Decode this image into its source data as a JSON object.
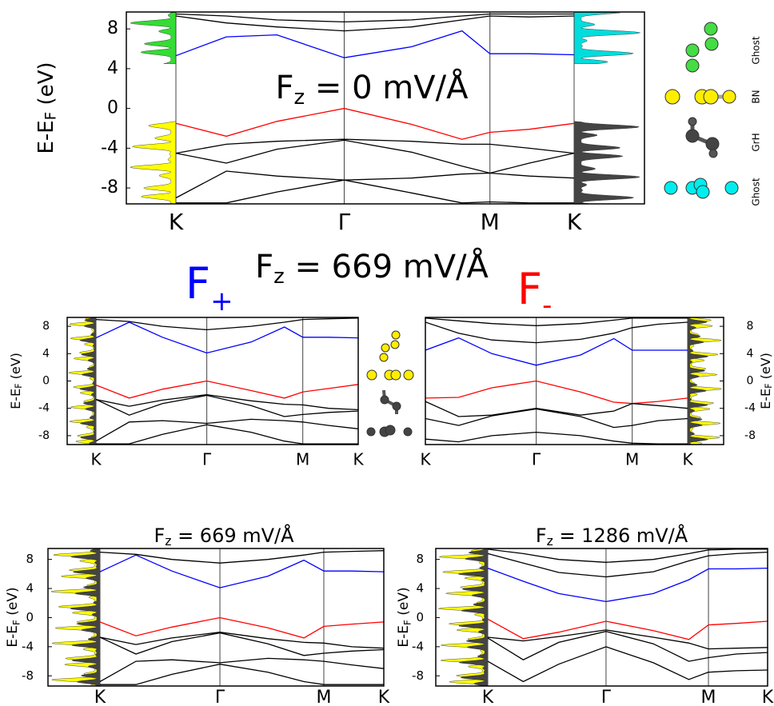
{
  "headings": {
    "main": {
      "text": "F",
      "sub": "z",
      "rest": " = 669 mV/Å"
    },
    "plus": {
      "text": "F",
      "sub": "+"
    },
    "minus": {
      "text": "F",
      "sub": "-"
    }
  },
  "atom_labels": [
    "Ghost",
    "BN",
    "GrH",
    "Ghost"
  ],
  "chart_data": [
    {
      "type": "line",
      "title": {
        "text": "F",
        "sub": "z",
        "rest": " = 0 mV/Å"
      },
      "ylabel": {
        "text": "E-E",
        "sub": "F",
        "rest": " (eV)"
      },
      "x": [
        0,
        0.3,
        0.6,
        1,
        1.4,
        1.7,
        1.866,
        2.1,
        2.366
      ],
      "xlim": [
        0,
        2.366
      ],
      "xticks": [
        {
          "value": 0,
          "label": "K"
        },
        {
          "value": 1,
          "label": "Γ"
        },
        {
          "value": 1.866,
          "label": "M"
        },
        {
          "value": 2.366,
          "label": "K"
        }
      ],
      "ylim": [
        -9.6,
        9.7
      ],
      "yticks": [
        -8,
        -4,
        0,
        4,
        8
      ],
      "xgrid": true,
      "series": [
        {
          "color": "#ff0000",
          "values": [
            -1.5,
            -2.8,
            -1.3,
            0,
            -1.6,
            -3.1,
            -2.4,
            -2.1,
            -1.5
          ]
        },
        {
          "color": "#0000ff",
          "values": [
            5.3,
            7.2,
            7.4,
            5.1,
            6.2,
            7.8,
            5.5,
            5.5,
            5.4
          ]
        },
        {
          "color": "#000000",
          "values": [
            9.3,
            8.6,
            8.2,
            7.8,
            8.2,
            8.9,
            9.3,
            9.2,
            9.3
          ]
        },
        {
          "color": "#000000",
          "values": [
            9.5,
            9.3,
            8.9,
            8.7,
            8.9,
            9.3,
            9.5,
            9.5,
            9.5
          ]
        },
        {
          "color": "#000000",
          "values": [
            -4.5,
            -3.6,
            -3.3,
            -3.1,
            -3.3,
            -3.6,
            -3.6,
            -4.0,
            -4.5
          ]
        },
        {
          "color": "#000000",
          "values": [
            -4.5,
            -5.5,
            -4.1,
            -3.2,
            -4.4,
            -5.8,
            -6.5,
            -5.5,
            -4.5
          ]
        },
        {
          "color": "#000000",
          "values": [
            -9.0,
            -6.3,
            -6.8,
            -7.2,
            -7.0,
            -6.6,
            -6.5,
            -6.8,
            -7.0
          ]
        },
        {
          "color": "#000000",
          "values": [
            -9.5,
            -9.5,
            -8.4,
            -7.2,
            -8.5,
            -9.5,
            -9.4,
            -9.5,
            -9.5
          ]
        }
      ]
    },
    {
      "type": "line",
      "ylabel": {
        "text": "E-E",
        "sub": "F",
        "rest": " (eV)"
      },
      "x": [
        0,
        0.3,
        0.6,
        1,
        1.4,
        1.7,
        1.866,
        2.1,
        2.366
      ],
      "xlim": [
        0,
        2.366
      ],
      "xticks": [
        {
          "value": 0,
          "label": "K"
        },
        {
          "value": 1,
          "label": "Γ"
        },
        {
          "value": 1.866,
          "label": "M"
        },
        {
          "value": 2.366,
          "label": "K"
        }
      ],
      "ylim": [
        -9.3,
        9.3
      ],
      "yticks": [
        -8,
        -4,
        0,
        4,
        8
      ],
      "xgrid": true,
      "series": [
        {
          "color": "#ff0000",
          "values": [
            -0.6,
            -2.5,
            -1.2,
            0,
            -1.4,
            -2.5,
            -1.6,
            -1.1,
            -0.5
          ]
        },
        {
          "color": "#0000ff",
          "values": [
            6.3,
            8.6,
            6.4,
            4.1,
            5.7,
            7.9,
            6.4,
            6.4,
            6.3
          ]
        },
        {
          "color": "#000000",
          "values": [
            9.0,
            8.7,
            8.0,
            7.5,
            8.0,
            8.6,
            9.0,
            9.1,
            9.2
          ]
        },
        {
          "color": "#000000",
          "values": [
            -2.7,
            -3.7,
            -2.8,
            -2.0,
            -2.9,
            -3.4,
            -3.5,
            -4.0,
            -4.2
          ]
        },
        {
          "color": "#000000",
          "values": [
            -2.7,
            -5.0,
            -3.3,
            -2.1,
            -3.6,
            -5.2,
            -4.9,
            -4.6,
            -4.4
          ]
        },
        {
          "color": "#000000",
          "values": [
            -8.8,
            -6.0,
            -5.8,
            -6.2,
            -5.6,
            -5.8,
            -6.0,
            -6.5,
            -7.0
          ]
        },
        {
          "color": "#000000",
          "values": [
            -9.2,
            -9.2,
            -7.8,
            -6.4,
            -7.5,
            -8.8,
            -9.2,
            -9.2,
            -9.2
          ]
        }
      ]
    },
    {
      "type": "line",
      "ylabel": {
        "text": "E-E",
        "sub": "F",
        "rest": " (eV)"
      },
      "x": [
        0,
        0.3,
        0.6,
        1,
        1.4,
        1.7,
        1.866,
        2.1,
        2.366
      ],
      "xlim": [
        0,
        2.366
      ],
      "xticks": [
        {
          "value": 0,
          "label": "K"
        },
        {
          "value": 1,
          "label": "Γ"
        },
        {
          "value": 1.866,
          "label": "M"
        },
        {
          "value": 2.366,
          "label": "K"
        }
      ],
      "ylim": [
        -9.3,
        9.3
      ],
      "yticks": [
        -8,
        -4,
        0,
        4,
        8
      ],
      "xgrid": true,
      "series": [
        {
          "color": "#ff0000",
          "values": [
            -2.5,
            -2.4,
            -1.0,
            0,
            -1.6,
            -3.1,
            -3.3,
            -3.0,
            -2.5
          ]
        },
        {
          "color": "#0000ff",
          "values": [
            4.5,
            6.3,
            4.0,
            2.3,
            3.8,
            6.2,
            4.5,
            4.5,
            4.5
          ]
        },
        {
          "color": "#000000",
          "values": [
            8.6,
            7.0,
            6.0,
            5.6,
            6.1,
            7.0,
            7.8,
            8.3,
            8.6
          ]
        },
        {
          "color": "#000000",
          "values": [
            9.2,
            8.8,
            8.4,
            8.1,
            8.4,
            8.9,
            9.2,
            9.2,
            9.2
          ]
        },
        {
          "color": "#000000",
          "values": [
            -3.0,
            -5.2,
            -5.0,
            -4.0,
            -5.0,
            -4.4,
            -3.3,
            -3.6,
            -4.0
          ]
        },
        {
          "color": "#000000",
          "values": [
            -5.5,
            -6.5,
            -5.1,
            -4.1,
            -5.2,
            -6.8,
            -6.5,
            -5.8,
            -5.5
          ]
        },
        {
          "color": "#000000",
          "values": [
            -8.5,
            -8.9,
            -8.0,
            -7.5,
            -8.0,
            -8.8,
            -9.1,
            -9.2,
            -9.2
          ]
        }
      ]
    },
    {
      "type": "line",
      "title": {
        "text": "F",
        "sub": "z",
        "rest": " = 669 mV/Å"
      },
      "ylabel": {
        "text": "E-E",
        "sub": "F",
        "rest": " (eV)"
      },
      "x": [
        0,
        0.3,
        0.6,
        1,
        1.4,
        1.7,
        1.866,
        2.1,
        2.366
      ],
      "xlim": [
        0,
        2.366
      ],
      "xticks": [
        {
          "value": 0,
          "label": "K"
        },
        {
          "value": 1,
          "label": "Γ"
        },
        {
          "value": 1.866,
          "label": "M"
        },
        {
          "value": 2.366,
          "label": "K"
        }
      ],
      "ylim": [
        -9.4,
        9.5
      ],
      "yticks": [
        -8,
        -4,
        0,
        4,
        8
      ],
      "xgrid": true,
      "series": [
        {
          "color": "#ff0000",
          "values": [
            -0.6,
            -2.5,
            -1.3,
            0,
            -1.4,
            -2.8,
            -1.2,
            -0.9,
            -0.6
          ]
        },
        {
          "color": "#0000ff",
          "values": [
            6.3,
            8.6,
            6.4,
            4.1,
            5.7,
            7.9,
            6.4,
            6.4,
            6.3
          ]
        },
        {
          "color": "#000000",
          "values": [
            9.0,
            8.7,
            8.0,
            7.5,
            8.0,
            8.6,
            9.0,
            9.1,
            9.2
          ]
        },
        {
          "color": "#000000",
          "values": [
            -2.7,
            -3.7,
            -2.8,
            -2.0,
            -2.9,
            -3.4,
            -3.5,
            -4.0,
            -4.2
          ]
        },
        {
          "color": "#000000",
          "values": [
            -2.7,
            -5.0,
            -3.3,
            -2.1,
            -3.6,
            -5.2,
            -4.9,
            -4.6,
            -4.4
          ]
        },
        {
          "color": "#000000",
          "values": [
            -8.8,
            -6.0,
            -5.8,
            -6.2,
            -5.6,
            -5.8,
            -6.0,
            -6.5,
            -7.0
          ]
        },
        {
          "color": "#000000",
          "values": [
            -9.2,
            -9.2,
            -7.8,
            -6.4,
            -7.5,
            -8.8,
            -9.2,
            -9.2,
            -9.2
          ]
        }
      ]
    },
    {
      "type": "line",
      "title": {
        "text": "F",
        "sub": "z",
        "rest": " = 1286 mV/Å"
      },
      "ylabel": {
        "text": "E-E",
        "sub": "F",
        "rest": " (eV)"
      },
      "x": [
        0,
        0.3,
        0.6,
        1,
        1.4,
        1.7,
        1.866,
        2.1,
        2.366
      ],
      "xlim": [
        0,
        2.366
      ],
      "xticks": [
        {
          "value": 0,
          "label": "K"
        },
        {
          "value": 1,
          "label": "Γ"
        },
        {
          "value": 1.866,
          "label": "M"
        },
        {
          "value": 2.366,
          "label": "K"
        }
      ],
      "ylim": [
        -9.4,
        9.5
      ],
      "yticks": [
        -8,
        -4,
        0,
        4,
        8
      ],
      "xgrid": true,
      "series": [
        {
          "color": "#ff0000",
          "values": [
            -0.2,
            -2.9,
            -2.0,
            -0.5,
            -1.8,
            -3.0,
            -1.0,
            -0.8,
            -0.5
          ]
        },
        {
          "color": "#0000ff",
          "values": [
            6.8,
            5.0,
            3.3,
            2.2,
            3.3,
            5.2,
            6.7,
            6.7,
            6.8
          ]
        },
        {
          "color": "#000000",
          "values": [
            8.8,
            7.5,
            6.2,
            5.6,
            6.3,
            7.8,
            8.5,
            8.8,
            9.0
          ]
        },
        {
          "color": "#000000",
          "values": [
            9.4,
            8.8,
            8.0,
            7.6,
            8.0,
            8.8,
            9.3,
            9.4,
            9.4
          ]
        },
        {
          "color": "#000000",
          "values": [
            -2.7,
            -3.2,
            -2.6,
            -1.7,
            -2.7,
            -3.5,
            -4.3,
            -4.2,
            -4.1
          ]
        },
        {
          "color": "#000000",
          "values": [
            -2.8,
            -5.8,
            -3.4,
            -1.9,
            -3.6,
            -6.0,
            -5.5,
            -5.0,
            -4.8
          ]
        },
        {
          "color": "#000000",
          "values": [
            -6.0,
            -8.8,
            -6.4,
            -4.0,
            -6.2,
            -8.5,
            -7.5,
            -7.3,
            -7.2
          ]
        }
      ]
    }
  ]
}
